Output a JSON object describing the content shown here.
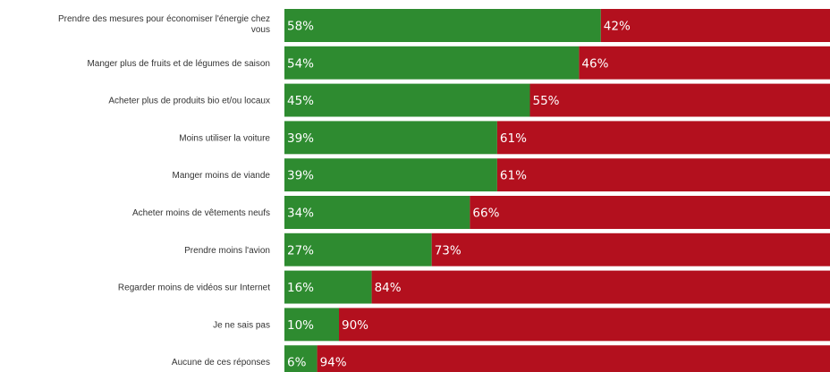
{
  "chart_data": {
    "type": "bar",
    "stacked": true,
    "orientation": "horizontal",
    "categories": [
      "Prendre des mesures pour économiser l'énergie chez vous",
      "Manger plus de fruits et de légumes de saison",
      "Acheter plus de produits bio et/ou locaux",
      "Moins utiliser la voiture",
      "Manger moins de viande",
      "Acheter moins de vêtements neufs",
      "Prendre moins l'avion",
      "Regarder moins de vidéos sur Internet",
      "Je ne sais pas",
      "Aucune de ces réponses"
    ],
    "category_lines": [
      [
        "Prendre des mesures pour économiser l'énergie chez",
        "vous"
      ],
      [
        "Manger plus de fruits et de légumes de saison"
      ],
      [
        "Acheter plus de produits bio et/ou locaux"
      ],
      [
        "Moins utiliser la voiture"
      ],
      [
        "Manger moins de viande"
      ],
      [
        "Acheter moins de vêtements neufs"
      ],
      [
        "Prendre moins l'avion"
      ],
      [
        "Regarder moins de vidéos sur Internet"
      ],
      [
        "Je ne sais pas"
      ],
      [
        "Aucune de ces réponses"
      ]
    ],
    "series": [
      {
        "color": "#2e8b30",
        "values": [
          58,
          54,
          45,
          39,
          39,
          34,
          27,
          16,
          10,
          6
        ]
      },
      {
        "color": "#b3101e",
        "values": [
          42,
          46,
          55,
          61,
          61,
          66,
          73,
          84,
          90,
          94
        ]
      }
    ],
    "value_labels": {
      "series_0": [
        "58%",
        "54%",
        "45%",
        "39%",
        "39%",
        "34%",
        "27%",
        "16%",
        "10%",
        "6%"
      ],
      "series_1": [
        "42%",
        "46%",
        "55%",
        "61%",
        "61%",
        "66%",
        "73%",
        "84%",
        "90%",
        "94%"
      ]
    },
    "xlim": [
      0,
      100
    ],
    "grid": false,
    "legend": "none"
  }
}
